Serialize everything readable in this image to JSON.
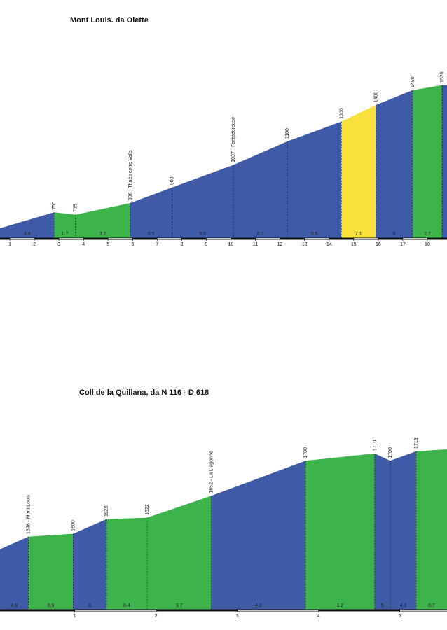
{
  "chart_data": [
    {
      "type": "profile",
      "title": "Mont Louis. da Olette",
      "xlim": [
        0.6,
        18.8
      ],
      "xticks": [
        1,
        2,
        3,
        4,
        5,
        6,
        7,
        8,
        9,
        10,
        11,
        12,
        13,
        14,
        15,
        16,
        17,
        18
      ],
      "points": [
        {
          "km": 2.8,
          "alt": 750
        },
        {
          "km": 3.67,
          "alt": 735
        },
        {
          "km": 5.9,
          "alt": 806,
          "label": "806 - Thuès entre Valls"
        },
        {
          "km": 7.6,
          "alt": 900
        },
        {
          "km": 10.1,
          "alt": 1037,
          "label": "1037 - Fontpédrouse"
        },
        {
          "km": 12.3,
          "alt": 1180
        },
        {
          "km": 14.5,
          "alt": 1300
        },
        {
          "km": 15.9,
          "alt": 1400
        },
        {
          "km": 17.4,
          "alt": 1490
        },
        {
          "km": 18.6,
          "alt": 1520
        }
      ],
      "segments": [
        {
          "grade": 4.4,
          "color": "#3f5aa6"
        },
        {
          "grade": 1.7,
          "color": "#3db34b"
        },
        {
          "grade": 3.2,
          "color": "#3db34b"
        },
        {
          "grade": 5.5,
          "color": "#3f5aa6"
        },
        {
          "grade": 5.6,
          "color": "#3f5aa6"
        },
        {
          "grade": 6.2,
          "color": "#3f5aa6"
        },
        {
          "grade": 5.5,
          "color": "#3f5aa6"
        },
        {
          "grade": 7.1,
          "color": "#f9e03b"
        },
        {
          "grade": 6.0,
          "color": "#3f5aa6"
        },
        {
          "grade": 2.7,
          "color": "#3db34b"
        },
        {
          "grade": null,
          "color": "#3f5aa6"
        }
      ]
    },
    {
      "type": "profile",
      "title": "Coll de la Quillana, da N 116 - D 618",
      "xlim": [
        0.08,
        5.58
      ],
      "xticks": [
        1,
        2,
        3,
        4,
        5
      ],
      "points": [
        {
          "km": 0.43,
          "alt": 1596,
          "label": "1596 - Mont Louis"
        },
        {
          "km": 0.98,
          "alt": 1600
        },
        {
          "km": 1.39,
          "alt": 1620
        },
        {
          "km": 1.89,
          "alt": 1622
        },
        {
          "km": 2.68,
          "alt": 1652,
          "label": "1652 - La Llagonne"
        },
        {
          "km": 3.84,
          "alt": 1700
        },
        {
          "km": 4.69,
          "alt": 1710
        },
        {
          "km": 4.88,
          "alt": 1700
        },
        {
          "km": 5.2,
          "alt": 1713
        }
      ],
      "segments": [
        {
          "grade": 4.9,
          "color": "#3f5aa6"
        },
        {
          "grade": 0.9,
          "color": "#3db34b"
        },
        {
          "grade": 6.0,
          "color": "#3f5aa6"
        },
        {
          "grade": 0.4,
          "color": "#3db34b"
        },
        {
          "grade": 3.7,
          "color": "#3db34b"
        },
        {
          "grade": 4.2,
          "color": "#3f5aa6"
        },
        {
          "grade": 1.2,
          "color": "#3db34b"
        },
        {
          "grade": 5.0,
          "color": "#3f5aa6"
        },
        {
          "grade": 4.3,
          "color": "#3f5aa6"
        },
        {
          "grade": 0.7,
          "color": "#3db34b"
        }
      ]
    }
  ]
}
